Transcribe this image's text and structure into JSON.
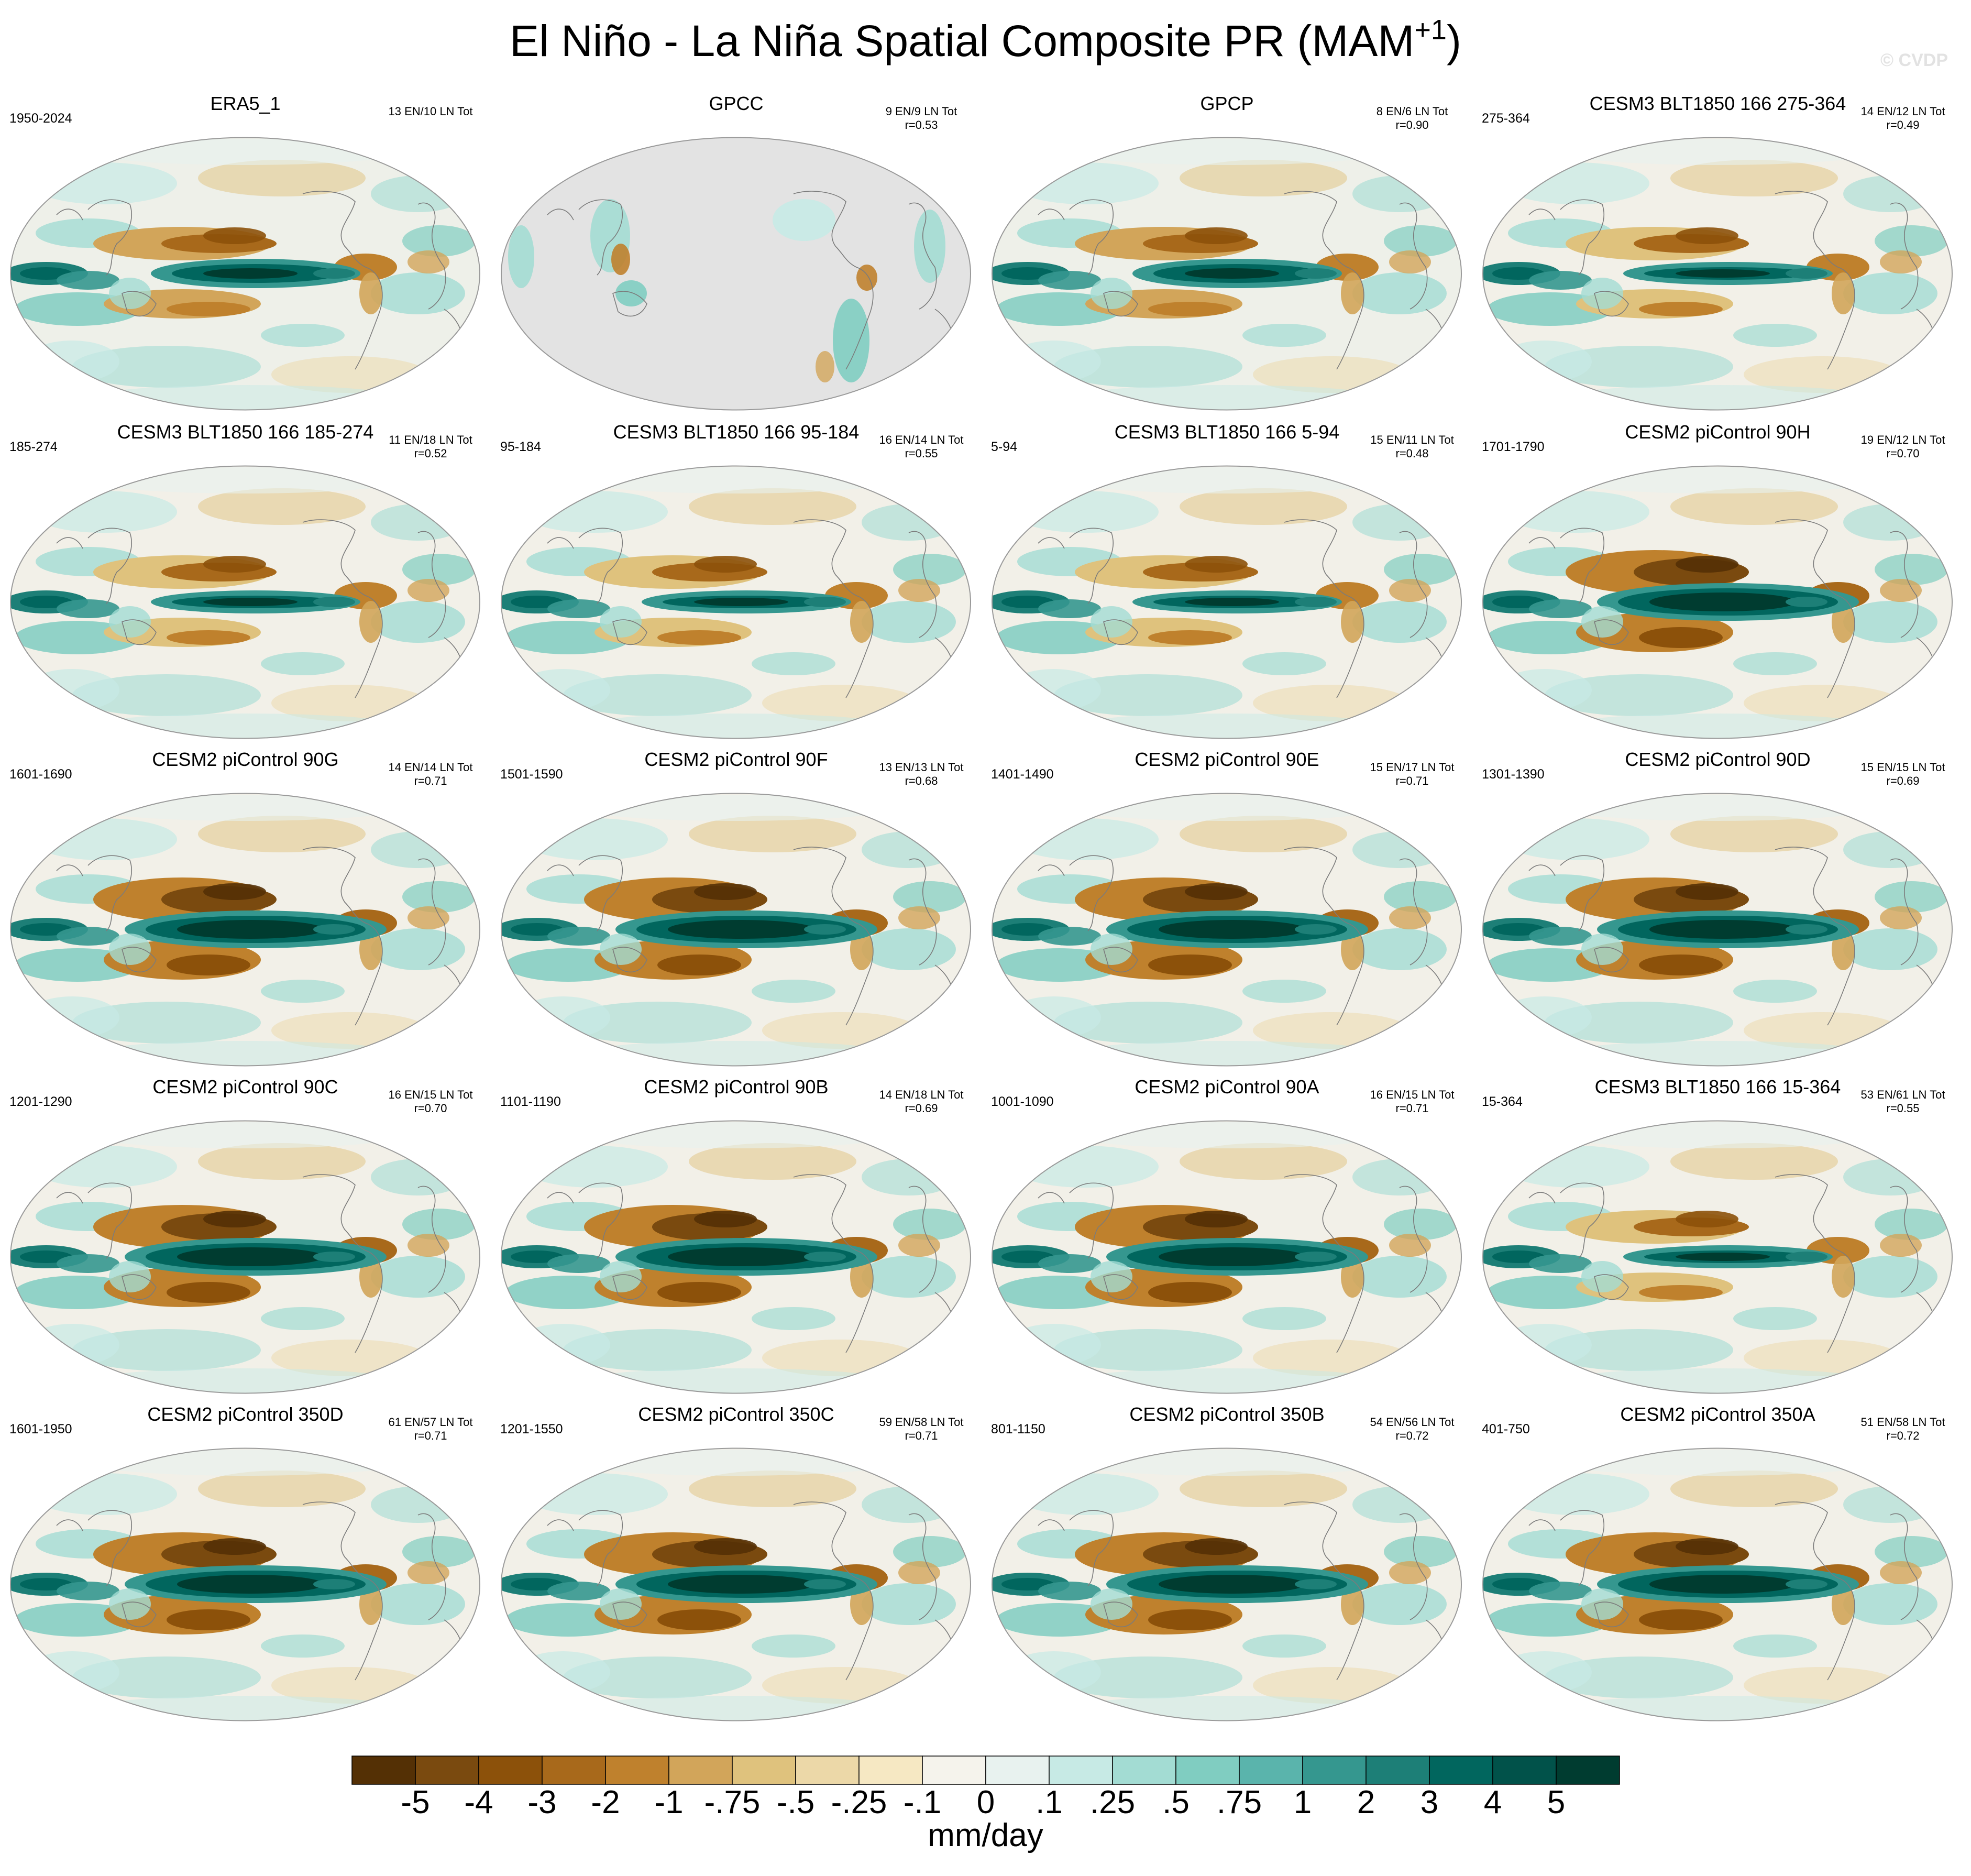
{
  "figure": {
    "title_main": "El Niño - La Niña Spatial Composite PR (MAM",
    "title_sup": "+1",
    "title_end": ")",
    "watermark": "© CVDP"
  },
  "chart_data": {
    "type": "heatmap",
    "description_variable": "PR",
    "season": "MAM+1",
    "panels": [
      {
        "name": "ERA5_1",
        "years": "1950-2024",
        "events": "13 EN/10 LN Tot",
        "r": "",
        "variant": "obs"
      },
      {
        "name": "GPCC",
        "years": "",
        "events": "9 EN/9 LN Tot",
        "r": "r=0.53",
        "variant": "land"
      },
      {
        "name": "GPCP",
        "years": "",
        "events": "8 EN/6 LN Tot",
        "r": "r=0.90",
        "variant": "obs"
      },
      {
        "name": "CESM3 BLT1850 166 275-364",
        "years": "275-364",
        "events": "14 EN/12 LN Tot",
        "r": "r=0.49",
        "variant": "narrow"
      },
      {
        "name": "CESM3 BLT1850 166 185-274",
        "years": "185-274",
        "events": "11 EN/18 LN Tot",
        "r": "r=0.52",
        "variant": "narrow"
      },
      {
        "name": "CESM3 BLT1850 166 95-184",
        "years": "95-184",
        "events": "16 EN/14 LN Tot",
        "r": "r=0.55",
        "variant": "narrow"
      },
      {
        "name": "CESM3 BLT1850 166 5-94",
        "years": "5-94",
        "events": "15 EN/11 LN Tot",
        "r": "r=0.48",
        "variant": "narrow"
      },
      {
        "name": "CESM2 piControl 90H",
        "years": "1701-1790",
        "events": "19 EN/12 LN Tot",
        "r": "r=0.70",
        "variant": "strong"
      },
      {
        "name": "CESM2 piControl 90G",
        "years": "1601-1690",
        "events": "14 EN/14 LN Tot",
        "r": "r=0.71",
        "variant": "strong"
      },
      {
        "name": "CESM2 piControl 90F",
        "years": "1501-1590",
        "events": "13 EN/13 LN Tot",
        "r": "r=0.68",
        "variant": "strong"
      },
      {
        "name": "CESM2 piControl 90E",
        "years": "1401-1490",
        "events": "15 EN/17 LN Tot",
        "r": "r=0.71",
        "variant": "strong"
      },
      {
        "name": "CESM2 piControl 90D",
        "years": "1301-1390",
        "events": "15 EN/15 LN Tot",
        "r": "r=0.69",
        "variant": "strong"
      },
      {
        "name": "CESM2 piControl 90C",
        "years": "1201-1290",
        "events": "16 EN/15 LN Tot",
        "r": "r=0.70",
        "variant": "strong"
      },
      {
        "name": "CESM2 piControl 90B",
        "years": "1101-1190",
        "events": "14 EN/18 LN Tot",
        "r": "r=0.69",
        "variant": "strong"
      },
      {
        "name": "CESM2 piControl 90A",
        "years": "1001-1090",
        "events": "16 EN/15 LN Tot",
        "r": "r=0.71",
        "variant": "strong"
      },
      {
        "name": "CESM3 BLT1850 166 15-364",
        "years": "15-364",
        "events": "53 EN/61 LN Tot",
        "r": "r=0.55",
        "variant": "narrow"
      },
      {
        "name": "CESM2 piControl 350D",
        "years": "1601-1950",
        "events": "61 EN/57 LN Tot",
        "r": "r=0.71",
        "variant": "strong"
      },
      {
        "name": "CESM2 piControl 350C",
        "years": "1201-1550",
        "events": "59 EN/58 LN Tot",
        "r": "r=0.71",
        "variant": "strong"
      },
      {
        "name": "CESM2 piControl 350B",
        "years": "801-1150",
        "events": "54 EN/56 LN Tot",
        "r": "r=0.72",
        "variant": "strong"
      },
      {
        "name": "CESM2 piControl 350A",
        "years": "401-750",
        "events": "51 EN/58 LN Tot",
        "r": "r=0.72",
        "variant": "strong"
      }
    ],
    "colorbar": {
      "levels": [
        "-5",
        "-4",
        "-3",
        "-2",
        "-1",
        "-.75",
        "-.5",
        "-.25",
        "-.1",
        "0",
        ".1",
        ".25",
        ".5",
        ".75",
        "1",
        "2",
        "3",
        "4",
        "5"
      ],
      "colors": [
        "#543005",
        "#7a4a0f",
        "#8c510a",
        "#a8691b",
        "#bf812d",
        "#d2a55a",
        "#dfc27d",
        "#ecd8a8",
        "#f6e8c3",
        "#f5f3ec",
        "#e8f2ef",
        "#c7eae5",
        "#a3dcd3",
        "#80cdc1",
        "#5ab4ac",
        "#35978f",
        "#1d7f77",
        "#01665e",
        "#01524a",
        "#003c30"
      ],
      "units": "mm/day"
    }
  }
}
